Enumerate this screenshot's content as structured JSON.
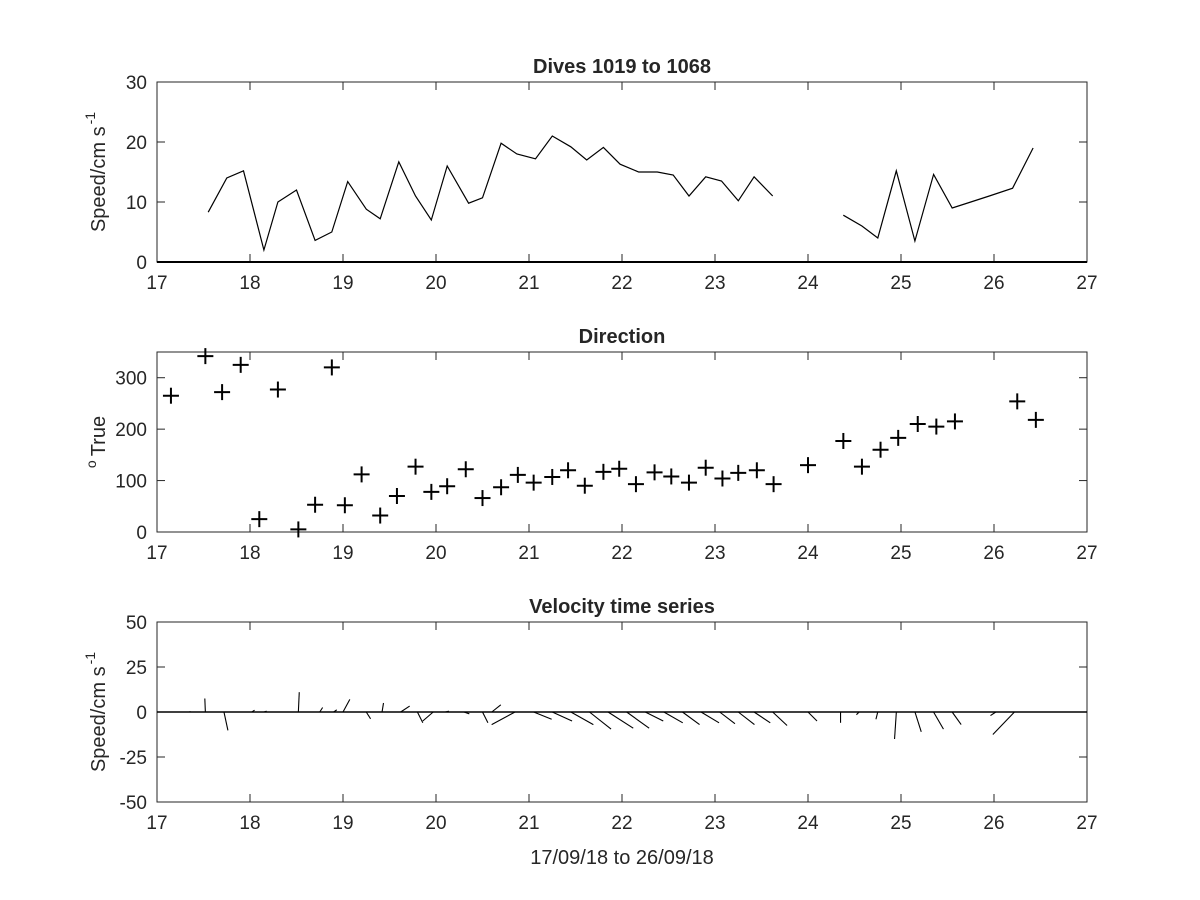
{
  "chart_data": [
    {
      "type": "line",
      "title": "Dives 1019 to 1068",
      "ylabel": "Speed/cm s",
      "ylabel_sup": "-1",
      "xlabel": "",
      "xlim": [
        17,
        27
      ],
      "ylim": [
        0,
        30
      ],
      "xticks": [
        "17",
        "18",
        "19",
        "20",
        "21",
        "22",
        "23",
        "24",
        "25",
        "26",
        "27"
      ],
      "yticks": [
        "0",
        "10",
        "20",
        "30"
      ],
      "grid": false,
      "segments": [
        [
          [
            17.55,
            8.3
          ],
          [
            17.75,
            14
          ],
          [
            17.93,
            15.2
          ],
          [
            18.15,
            2
          ],
          [
            18.3,
            10
          ],
          [
            18.5,
            12
          ],
          [
            18.7,
            3.6
          ],
          [
            18.88,
            5
          ],
          [
            19.05,
            13.4
          ],
          [
            19.25,
            8.8
          ],
          [
            19.4,
            7.2
          ],
          [
            19.6,
            16.7
          ],
          [
            19.78,
            11
          ],
          [
            19.95,
            7
          ],
          [
            20.12,
            16
          ],
          [
            20.35,
            9.8
          ],
          [
            20.5,
            10.7
          ],
          [
            20.7,
            19.8
          ],
          [
            20.87,
            18
          ],
          [
            21.07,
            17.2
          ],
          [
            21.25,
            21
          ],
          [
            21.45,
            19.2
          ],
          [
            21.62,
            17
          ],
          [
            21.8,
            19.1
          ],
          [
            21.98,
            16.3
          ],
          [
            22.18,
            15
          ],
          [
            22.38,
            15
          ],
          [
            22.55,
            14.5
          ],
          [
            22.72,
            11
          ],
          [
            22.9,
            14.2
          ],
          [
            23.07,
            13.5
          ],
          [
            23.25,
            10.2
          ],
          [
            23.42,
            14.2
          ],
          [
            23.62,
            11
          ]
        ],
        [
          [
            24.38,
            7.8
          ],
          [
            24.58,
            6
          ],
          [
            24.75,
            4
          ],
          [
            24.95,
            15.2
          ],
          [
            25.15,
            3.5
          ],
          [
            25.35,
            14.6
          ],
          [
            25.55,
            9
          ],
          [
            25.75,
            10
          ],
          [
            25.95,
            11
          ],
          [
            26.2,
            12.3
          ],
          [
            26.42,
            19
          ]
        ]
      ]
    },
    {
      "type": "scatter",
      "title": "Direction",
      "ylabel": "True",
      "ylabel_sup": "o",
      "xlabel": "",
      "xlim": [
        17,
        27
      ],
      "ylim": [
        0,
        350
      ],
      "xticks": [
        "17",
        "18",
        "19",
        "20",
        "21",
        "22",
        "23",
        "24",
        "25",
        "26",
        "27"
      ],
      "yticks": [
        "0",
        "100",
        "200",
        "300"
      ],
      "marker": "+",
      "grid": false,
      "points": [
        [
          17.15,
          265
        ],
        [
          17.52,
          342
        ],
        [
          17.7,
          272
        ],
        [
          17.9,
          325
        ],
        [
          18.1,
          25
        ],
        [
          18.3,
          277
        ],
        [
          18.52,
          5
        ],
        [
          18.7,
          53
        ],
        [
          18.88,
          320
        ],
        [
          19.02,
          52
        ],
        [
          19.2,
          112
        ],
        [
          19.4,
          32
        ],
        [
          19.58,
          70
        ],
        [
          19.78,
          127
        ],
        [
          19.95,
          78
        ],
        [
          20.12,
          89
        ],
        [
          20.32,
          122
        ],
        [
          20.5,
          66
        ],
        [
          20.7,
          87
        ],
        [
          20.88,
          111
        ],
        [
          21.05,
          96
        ],
        [
          21.25,
          107
        ],
        [
          21.42,
          120
        ],
        [
          21.6,
          90
        ],
        [
          21.8,
          117
        ],
        [
          21.97,
          123
        ],
        [
          22.15,
          93
        ],
        [
          22.35,
          116
        ],
        [
          22.53,
          108
        ],
        [
          22.72,
          96
        ],
        [
          22.9,
          125
        ],
        [
          23.08,
          104
        ],
        [
          23.25,
          115
        ],
        [
          23.45,
          120
        ],
        [
          23.63,
          93
        ],
        [
          24.0,
          130
        ],
        [
          24.38,
          177
        ],
        [
          24.58,
          127
        ],
        [
          24.78,
          160
        ],
        [
          24.97,
          183
        ],
        [
          25.18,
          210
        ],
        [
          25.38,
          205
        ],
        [
          25.58,
          215
        ],
        [
          26.25,
          254
        ],
        [
          26.45,
          218
        ]
      ]
    },
    {
      "type": "quiver",
      "title": "Velocity time series",
      "ylabel": "Speed/cm s",
      "ylabel_sup": "-1",
      "xlabel": "17/09/18 to 26/09/18",
      "xlim": [
        17,
        27
      ],
      "ylim": [
        -50,
        50
      ],
      "xticks": [
        "17",
        "18",
        "19",
        "20",
        "21",
        "22",
        "23",
        "24",
        "25",
        "26",
        "27"
      ],
      "yticks": [
        "-50",
        "-25",
        "0",
        "25",
        "50"
      ],
      "grid": false,
      "arrows": [
        [
          17.35,
          0.5,
          0.3
        ],
        [
          17.52,
          -0.3,
          7.5
        ],
        [
          17.72,
          2.2,
          -10.2
        ],
        [
          18.02,
          1.5,
          1.0
        ],
        [
          18.15,
          1.5,
          0.5
        ],
        [
          18.52,
          0.5,
          11.0
        ],
        [
          18.75,
          1.6,
          2.5
        ],
        [
          18.9,
          1.7,
          1.2
        ],
        [
          19.0,
          3.8,
          7.0
        ],
        [
          19.25,
          2.4,
          -3.8
        ],
        [
          19.42,
          0.8,
          5.0
        ],
        [
          19.62,
          5.0,
          3.3
        ],
        [
          19.8,
          3.0,
          -6.0
        ],
        [
          19.97,
          -5.8,
          -5.0
        ],
        [
          20.1,
          2.0,
          0.5
        ],
        [
          20.3,
          3.0,
          -1.0
        ],
        [
          20.5,
          3.0,
          -6.0
        ],
        [
          20.6,
          5.0,
          4.0
        ],
        [
          20.85,
          -13.0,
          -7.0
        ],
        [
          21.05,
          10.0,
          -4.0
        ],
        [
          21.25,
          11.0,
          -5.0
        ],
        [
          21.45,
          12.5,
          -7.0
        ],
        [
          21.65,
          12.0,
          -9.5
        ],
        [
          21.85,
          14.0,
          -9.0
        ],
        [
          22.05,
          12.5,
          -9.0
        ],
        [
          22.25,
          10.0,
          -5.0
        ],
        [
          22.45,
          10.5,
          -6.0
        ],
        [
          22.65,
          9.5,
          -7.0
        ],
        [
          22.85,
          10.0,
          -6.0
        ],
        [
          23.05,
          8.5,
          -6.5
        ],
        [
          23.25,
          9.0,
          -7.0
        ],
        [
          23.42,
          9.0,
          -6.0
        ],
        [
          23.62,
          8.0,
          -7.5
        ],
        [
          24.0,
          5.0,
          -5.0
        ],
        [
          24.35,
          0.0,
          -6.0
        ],
        [
          24.55,
          -1.5,
          -1.5
        ],
        [
          24.75,
          -1.0,
          -4.0
        ],
        [
          24.95,
          -1.0,
          -15.0
        ],
        [
          25.15,
          3.5,
          -11.0
        ],
        [
          25.35,
          5.5,
          -9.5
        ],
        [
          25.55,
          5.0,
          -7.0
        ],
        [
          26.02,
          -3.0,
          -2.0
        ],
        [
          26.22,
          -12.0,
          -12.5
        ]
      ]
    }
  ]
}
